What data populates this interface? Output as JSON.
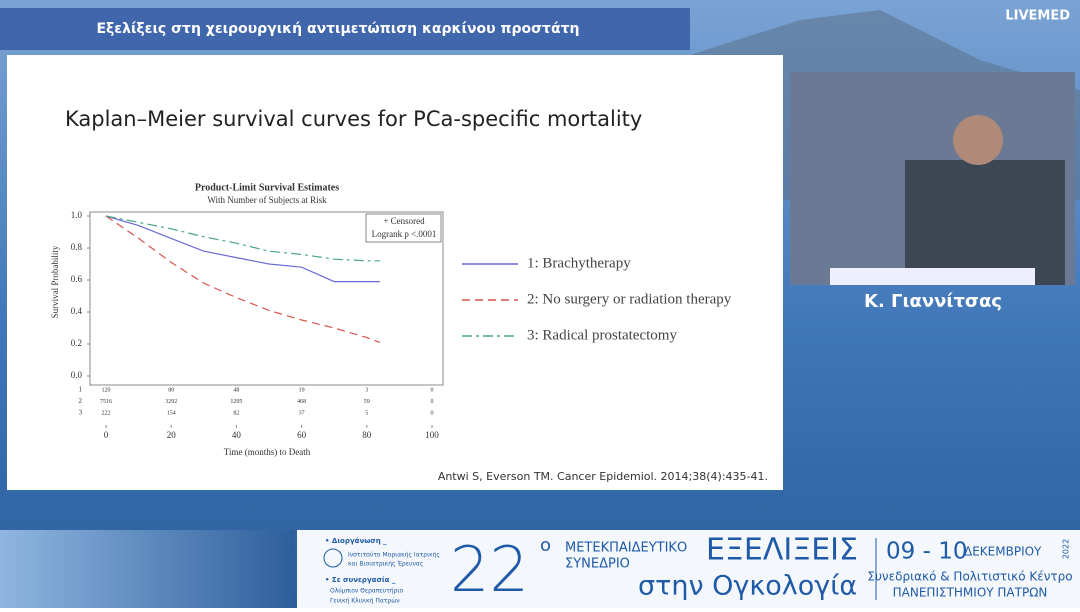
{
  "header": {
    "title": "Εξελίξεις στη χειρουργική αντιμετώπιση καρκίνου προστάτη",
    "brand": "LIVEMED"
  },
  "slide": {
    "title": "Kaplan–Meier survival curves for PCa-specific mortality",
    "citation": "Antwi S, Everson TM. Cancer Epidemiol. 2014;38(4):435-41."
  },
  "chart_data": {
    "type": "line",
    "title": "Product-Limit Survival Estimates",
    "subtitle": "With Number of Subjects at Risk",
    "x_label": "Time (months) to Death",
    "y_label": "Survival Probability",
    "annotations": [
      "+ Censored",
      "Logrank p <.0001"
    ],
    "x": [
      0,
      10,
      20,
      30,
      40,
      50,
      60,
      70,
      80,
      84
    ],
    "series": [
      {
        "name": "1: Brachytherapy",
        "color": "#6b6bd8",
        "dash": "none",
        "values": [
          1.0,
          0.94,
          0.86,
          0.78,
          0.74,
          0.7,
          0.68,
          0.59,
          0.59,
          0.59
        ]
      },
      {
        "name": "2: No surgery or radiation therapy",
        "color": "#d9534f",
        "dash": "8 5",
        "values": [
          1.0,
          0.86,
          0.71,
          0.58,
          0.49,
          0.41,
          0.35,
          0.3,
          0.24,
          0.21
        ]
      },
      {
        "name": "3: Radical prostatectomy",
        "color": "#4aa58a",
        "dash": "10 4 3 4",
        "values": [
          1.0,
          0.96,
          0.92,
          0.87,
          0.83,
          0.78,
          0.76,
          0.73,
          0.72,
          0.72
        ]
      }
    ],
    "xlim": [
      0,
      100
    ],
    "xticks": [
      0,
      20,
      40,
      60,
      80,
      100
    ],
    "ylim": [
      0,
      1
    ],
    "yticks": [
      {
        "value": 0,
        "label": "0.0"
      },
      0.2,
      0.4,
      0.6,
      0.8,
      {
        "value": 1,
        "label": "1.0"
      }
    ],
    "at_risk": {
      "groups": [
        "1",
        "2",
        "3"
      ],
      "rows": [
        [
          "120",
          "80",
          "48",
          "19",
          "3",
          "0"
        ],
        [
          "7516",
          "3292",
          "1295",
          "468",
          "59",
          "0"
        ],
        [
          "222",
          "154",
          "82",
          "37",
          "5",
          "0"
        ]
      ]
    }
  },
  "speaker": {
    "name": "Κ. Γιαννίτσας"
  },
  "banner": {
    "organizer_label": "• Διοργάνωση _",
    "organizer": [
      "Ινστιτούτο Μοριακής Ιατρικής",
      "και Βιοιατρικής Έρευνας"
    ],
    "partner_label": "• Σε συνεργασία _",
    "partner": [
      "Ολύμπιον Θεραπευτήριο",
      "Γενική Κλινική Πατρών"
    ],
    "edition": "22",
    "edition_sup": "ο",
    "event_type": [
      "ΜΕΤΕΚΠΑΙΔΕΥΤΙΚΟ",
      "ΣΥΝΕΔΡΙΟ"
    ],
    "event_title": "ΕΞΕΛΙΞΕΙΣ",
    "event_subtitle": "στην Ογκολογία",
    "dates": "09 - 10",
    "month": "ΔΕΚΕΜΒΡΙΟΥ",
    "year": "2022",
    "venue": [
      "Συνεδριακό & Πολιτιστικό Κέντρο",
      "ΠΑΝΕΠΙΣΤΗΜΙΟΥ ΠΑΤΡΩΝ"
    ]
  }
}
